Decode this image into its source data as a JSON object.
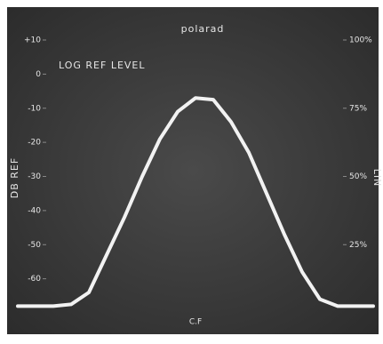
{
  "chart_data": {
    "type": "line",
    "title": "polarad",
    "annotation": "LOG REF LEVEL",
    "y_label": "DB REF",
    "y2_label": "LIN",
    "categories": [
      null,
      null,
      null,
      null,
      null,
      null,
      null,
      null,
      null,
      null,
      "C.F",
      null,
      null,
      null,
      null,
      null,
      null,
      null,
      null,
      null,
      null
    ],
    "series": [
      {
        "name": null,
        "color": "#f2f2f2",
        "values": [
          -68,
          -68,
          -68,
          -67.5,
          -64,
          -53,
          -42,
          -30,
          -19,
          -11,
          -7,
          -7.5,
          -14,
          -23,
          -35,
          -47,
          -58,
          -66,
          -68,
          -68,
          -68
        ]
      }
    ],
    "ylim": [
      -70,
      10
    ],
    "yticks": [
      {
        "value": 10,
        "label": "+10"
      },
      0,
      -10,
      -20,
      -30,
      -40,
      -50,
      -60
    ],
    "y2lim": [
      0,
      100
    ],
    "y2ticks": [
      {
        "value": 100,
        "label": "100%"
      },
      {
        "value": 75,
        "label": "75%"
      },
      {
        "value": 50,
        "label": "50%"
      },
      {
        "value": 25,
        "label": "25%"
      }
    ],
    "grid": false
  }
}
